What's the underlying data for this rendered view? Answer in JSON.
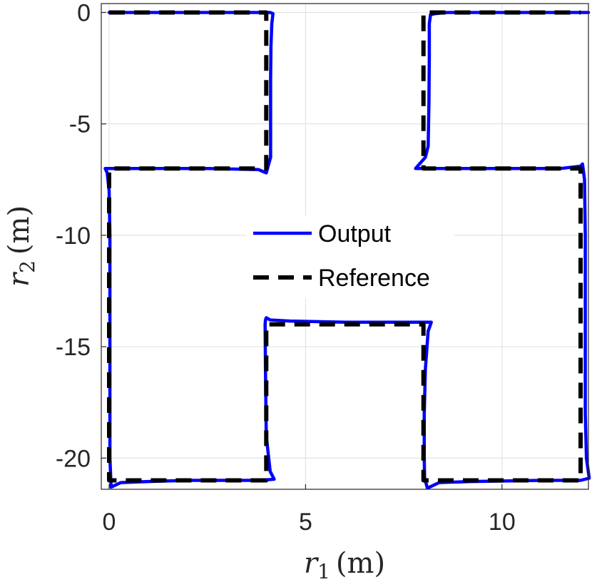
{
  "chart_data": {
    "type": "line",
    "title": "",
    "xlabel": {
      "symbol": "r",
      "sub": "1",
      "unit": "(m)"
    },
    "ylabel": {
      "symbol": "r",
      "sub": "2",
      "unit": "(m)"
    },
    "xlim": [
      -0.2,
      12.2
    ],
    "ylim": [
      -21.4,
      0.4
    ],
    "xticks": [
      0,
      5,
      10
    ],
    "xtick_labels": [
      "0",
      "5",
      "10"
    ],
    "yticks": [
      0,
      -5,
      -10,
      -15,
      -20
    ],
    "ytick_labels": [
      "0",
      "-5",
      "-10",
      "-15",
      "-20"
    ],
    "grid": true,
    "legend": {
      "placement": "center",
      "entries": [
        "Output",
        "Reference"
      ]
    },
    "series": [
      {
        "name": "Output",
        "color": "#0000ff",
        "style": "solid",
        "x": [
          0.0,
          4.1,
          4.17,
          4.14,
          4.12,
          4.11,
          4.11,
          4.0,
          3.8,
          2.5,
          1.0,
          0.2,
          -0.1,
          -0.05,
          0.0,
          0.02,
          0.02,
          0.02,
          0.05,
          0.3,
          1.0,
          2.0,
          3.8,
          4.2,
          4.1,
          4.0,
          3.98,
          3.97,
          3.98,
          4.0,
          4.1,
          4.6,
          6.0,
          8.2,
          8.12,
          8.05,
          8.02,
          8.02,
          8.03,
          8.1,
          8.4,
          9.2,
          11.0,
          12.0,
          12.22,
          12.15,
          12.12,
          12.12,
          12.12,
          12.1,
          12.05,
          12.0,
          11.5,
          10.0,
          8.5,
          7.8,
          8.05,
          8.12,
          8.14,
          8.15,
          8.15,
          8.18,
          8.3,
          8.6,
          9.5,
          12.2
        ],
        "y": [
          0.0,
          0.0,
          -0.05,
          -0.5,
          -1.5,
          -3.0,
          -6.5,
          -7.2,
          -7.05,
          -7.0,
          -7.0,
          -7.0,
          -7.0,
          -7.2,
          -8.0,
          -10.0,
          -14.0,
          -20.0,
          -21.3,
          -21.1,
          -21.05,
          -21.0,
          -21.0,
          -20.95,
          -20.6,
          -19.0,
          -16.0,
          -14.0,
          -13.8,
          -13.7,
          -13.8,
          -13.85,
          -13.9,
          -13.9,
          -14.3,
          -16.0,
          -18.0,
          -20.0,
          -20.9,
          -21.35,
          -21.1,
          -21.05,
          -21.0,
          -21.0,
          -20.9,
          -20.0,
          -18.0,
          -14.0,
          -10.0,
          -7.5,
          -6.8,
          -6.9,
          -7.0,
          -7.0,
          -7.0,
          -7.0,
          -6.5,
          -6.0,
          -4.0,
          -2.0,
          -0.5,
          -0.1,
          -0.05,
          0.0,
          0.0,
          0.0
        ]
      },
      {
        "name": "Reference",
        "color": "#000000",
        "style": "dashed",
        "x": [
          0,
          4,
          4,
          0,
          0,
          4,
          4,
          8,
          8,
          12,
          12,
          8,
          8,
          12
        ],
        "y": [
          0,
          0,
          -7,
          -7,
          -21,
          -21,
          -14,
          -14,
          -21,
          -21,
          -7,
          -7,
          0,
          0
        ]
      }
    ]
  }
}
